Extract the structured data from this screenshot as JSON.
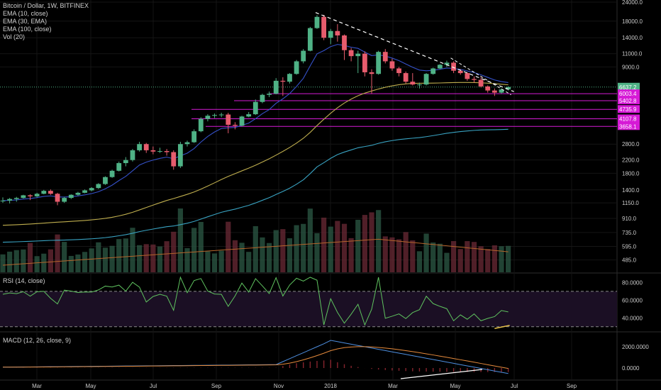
{
  "header": {
    "title": "Bitcoin / Dollar, 1W, BITFINEX",
    "indicators": [
      "EMA (10, close)",
      "EMA (30, EMA)",
      "EMA (100, close)",
      "Vol (20)"
    ]
  },
  "panes": {
    "rsi_label": "RSI (14, close)",
    "macd_label": "MACD (12, 26, close, 9)"
  },
  "colors": {
    "background": "#000000",
    "candle_up": "#4fb286",
    "candle_down": "#e75c6d",
    "ema10": "#3551c9",
    "ema30": "#bfae4e",
    "ema100": "#39a3c2",
    "support": "#d61ad6",
    "current": "#4fb286",
    "rsi": "#5fc35f",
    "rsi_band": "#1b0f24",
    "macd": "#4e8fe0",
    "signal": "#e58a3c",
    "trend": "#ffffff"
  },
  "chart_data": {
    "type": "candlestick",
    "symbol": "Bitcoin / Dollar",
    "interval": "1W",
    "exchange": "BITFINEX",
    "x_axis_labels": [
      "Mar",
      "May",
      "Jul",
      "Sep",
      "Nov",
      "2018",
      "Mar",
      "May",
      "Jul",
      "Sep"
    ],
    "y_axis_labels": [
      "24000.0",
      "18000.0",
      "14000.0",
      "11000.0",
      "9000.0",
      "6637.2",
      "6003.4",
      "5402.8",
      "4735.9",
      "4107.8",
      "3658.1",
      "2800.0",
      "2200.0",
      "1800.0",
      "1400.0",
      "1150.0",
      "910.0",
      "735.0",
      "595.0",
      "485.0"
    ],
    "current_price": "6637.2",
    "support_levels": [
      "6003.4",
      "5402.8",
      "4735.9",
      "4107.8",
      "3658.1"
    ],
    "rsi": {
      "labels": [
        "80.0000",
        "60.0000",
        "40.0000"
      ],
      "upper": 70,
      "lower": 30
    },
    "macd": {
      "labels": [
        "2000.0000",
        "0.0000"
      ]
    },
    "candles": [
      {
        "o": 1180,
        "h": 1250,
        "l": 1150,
        "c": 1190
      },
      {
        "o": 1190,
        "h": 1240,
        "l": 1140,
        "c": 1220
      },
      {
        "o": 1220,
        "h": 1260,
        "l": 1170,
        "c": 1240
      },
      {
        "o": 1240,
        "h": 1300,
        "l": 1230,
        "c": 1290
      },
      {
        "o": 1290,
        "h": 1310,
        "l": 1200,
        "c": 1270
      },
      {
        "o": 1270,
        "h": 1340,
        "l": 1250,
        "c": 1320
      },
      {
        "o": 1320,
        "h": 1400,
        "l": 1310,
        "c": 1380
      },
      {
        "o": 1380,
        "h": 1410,
        "l": 1300,
        "c": 1320
      },
      {
        "o": 1320,
        "h": 1340,
        "l": 1110,
        "c": 1170
      },
      {
        "o": 1170,
        "h": 1260,
        "l": 1150,
        "c": 1240
      },
      {
        "o": 1240,
        "h": 1310,
        "l": 1220,
        "c": 1300
      },
      {
        "o": 1300,
        "h": 1360,
        "l": 1280,
        "c": 1340
      },
      {
        "o": 1340,
        "h": 1410,
        "l": 1330,
        "c": 1390
      },
      {
        "o": 1390,
        "h": 1460,
        "l": 1370,
        "c": 1440
      },
      {
        "o": 1440,
        "h": 1550,
        "l": 1420,
        "c": 1530
      },
      {
        "o": 1530,
        "h": 1720,
        "l": 1510,
        "c": 1700
      },
      {
        "o": 1700,
        "h": 1900,
        "l": 1680,
        "c": 1870
      },
      {
        "o": 1870,
        "h": 2150,
        "l": 1850,
        "c": 2100
      },
      {
        "o": 2100,
        "h": 2300,
        "l": 2000,
        "c": 2200
      },
      {
        "o": 2200,
        "h": 2600,
        "l": 2150,
        "c": 2550
      },
      {
        "o": 2550,
        "h": 2900,
        "l": 2500,
        "c": 2800
      },
      {
        "o": 2800,
        "h": 2850,
        "l": 2450,
        "c": 2550
      },
      {
        "o": 2550,
        "h": 2700,
        "l": 2400,
        "c": 2500
      },
      {
        "o": 2500,
        "h": 2650,
        "l": 2450,
        "c": 2520
      },
      {
        "o": 2520,
        "h": 2600,
        "l": 2350,
        "c": 2480
      },
      {
        "o": 2480,
        "h": 2550,
        "l": 1900,
        "c": 2000
      },
      {
        "o": 2000,
        "h": 2900,
        "l": 1950,
        "c": 2800
      },
      {
        "o": 2800,
        "h": 2950,
        "l": 2700,
        "c": 2880
      },
      {
        "o": 2880,
        "h": 3500,
        "l": 2850,
        "c": 3400
      },
      {
        "o": 3400,
        "h": 4200,
        "l": 3350,
        "c": 4100
      },
      {
        "o": 4100,
        "h": 4400,
        "l": 3950,
        "c": 4300
      },
      {
        "o": 4300,
        "h": 4450,
        "l": 4150,
        "c": 4350
      },
      {
        "o": 4350,
        "h": 4500,
        "l": 4200,
        "c": 4380
      },
      {
        "o": 4380,
        "h": 4500,
        "l": 3300,
        "c": 3750
      },
      {
        "o": 3750,
        "h": 3900,
        "l": 3500,
        "c": 3700
      },
      {
        "o": 3700,
        "h": 4300,
        "l": 3650,
        "c": 4250
      },
      {
        "o": 4250,
        "h": 4550,
        "l": 4200,
        "c": 4400
      },
      {
        "o": 4400,
        "h": 5500,
        "l": 4350,
        "c": 5300
      },
      {
        "o": 5300,
        "h": 6000,
        "l": 5200,
        "c": 5900
      },
      {
        "o": 5900,
        "h": 6200,
        "l": 5700,
        "c": 6000
      },
      {
        "o": 6000,
        "h": 7600,
        "l": 5950,
        "c": 7300
      },
      {
        "o": 7300,
        "h": 7700,
        "l": 5800,
        "c": 7200
      },
      {
        "o": 7200,
        "h": 8200,
        "l": 7000,
        "c": 8100
      },
      {
        "o": 8100,
        "h": 10000,
        "l": 8000,
        "c": 9800
      },
      {
        "o": 9800,
        "h": 11800,
        "l": 9500,
        "c": 11500
      },
      {
        "o": 11500,
        "h": 16500,
        "l": 11400,
        "c": 16200
      },
      {
        "o": 16200,
        "h": 19700,
        "l": 16000,
        "c": 19200
      },
      {
        "o": 19200,
        "h": 19800,
        "l": 13500,
        "c": 14000
      },
      {
        "o": 14000,
        "h": 16000,
        "l": 12700,
        "c": 15500
      },
      {
        "o": 15500,
        "h": 17200,
        "l": 13200,
        "c": 14500
      },
      {
        "o": 14500,
        "h": 14700,
        "l": 10000,
        "c": 11600
      },
      {
        "o": 11600,
        "h": 12000,
        "l": 9800,
        "c": 10600
      },
      {
        "o": 10600,
        "h": 11500,
        "l": 8200,
        "c": 11000
      },
      {
        "o": 11000,
        "h": 11400,
        "l": 7800,
        "c": 8300
      },
      {
        "o": 8300,
        "h": 8700,
        "l": 6000,
        "c": 8100
      },
      {
        "o": 8100,
        "h": 11500,
        "l": 8000,
        "c": 11300
      },
      {
        "o": 11300,
        "h": 11800,
        "l": 9500,
        "c": 9800
      },
      {
        "o": 9800,
        "h": 10200,
        "l": 8500,
        "c": 8800
      },
      {
        "o": 8800,
        "h": 9000,
        "l": 7800,
        "c": 8200
      },
      {
        "o": 8200,
        "h": 8400,
        "l": 7000,
        "c": 7200
      },
      {
        "o": 7200,
        "h": 8200,
        "l": 6800,
        "c": 6900
      },
      {
        "o": 6900,
        "h": 7100,
        "l": 6500,
        "c": 6900
      },
      {
        "o": 6900,
        "h": 8200,
        "l": 6800,
        "c": 8100
      },
      {
        "o": 8100,
        "h": 8900,
        "l": 8000,
        "c": 8800
      },
      {
        "o": 8800,
        "h": 9400,
        "l": 8700,
        "c": 9300
      },
      {
        "o": 9300,
        "h": 9900,
        "l": 9000,
        "c": 9600
      },
      {
        "o": 9600,
        "h": 9800,
        "l": 8200,
        "c": 8500
      },
      {
        "o": 8500,
        "h": 8700,
        "l": 8000,
        "c": 8200
      },
      {
        "o": 8200,
        "h": 8300,
        "l": 7300,
        "c": 7500
      },
      {
        "o": 7500,
        "h": 7800,
        "l": 7100,
        "c": 7400
      },
      {
        "o": 7400,
        "h": 7700,
        "l": 6600,
        "c": 6700
      },
      {
        "o": 6700,
        "h": 6800,
        "l": 6100,
        "c": 6300
      },
      {
        "o": 6300,
        "h": 6500,
        "l": 5800,
        "c": 6100
      },
      {
        "o": 6100,
        "h": 6500,
        "l": 6000,
        "c": 6400
      },
      {
        "o": 6400,
        "h": 6700,
        "l": 6300,
        "c": 6637
      }
    ]
  }
}
